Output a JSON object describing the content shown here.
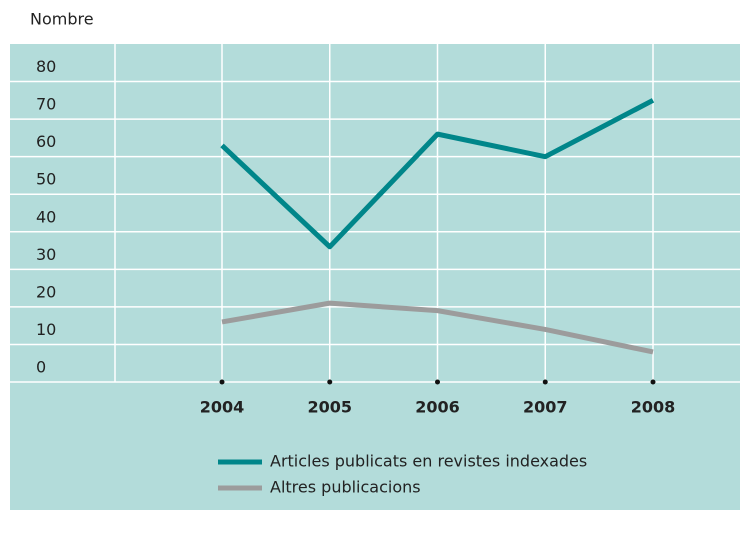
{
  "chart_data": {
    "type": "line",
    "y_label": "Nombre",
    "categories": [
      "2004",
      "2005",
      "2006",
      "2007",
      "2008"
    ],
    "series": [
      {
        "name": "Articles publicats en revistes indexades",
        "color": "#00868a",
        "values": [
          63,
          36,
          66,
          60,
          75
        ]
      },
      {
        "name": "Altres publicacions",
        "color": "#9c9c9c",
        "values": [
          16,
          21,
          19,
          14,
          8
        ]
      }
    ],
    "ylim": [
      0,
      90
    ],
    "yticks": [
      0,
      10,
      20,
      30,
      40,
      50,
      60,
      70,
      80
    ],
    "grid": true,
    "legend": "bottom"
  }
}
